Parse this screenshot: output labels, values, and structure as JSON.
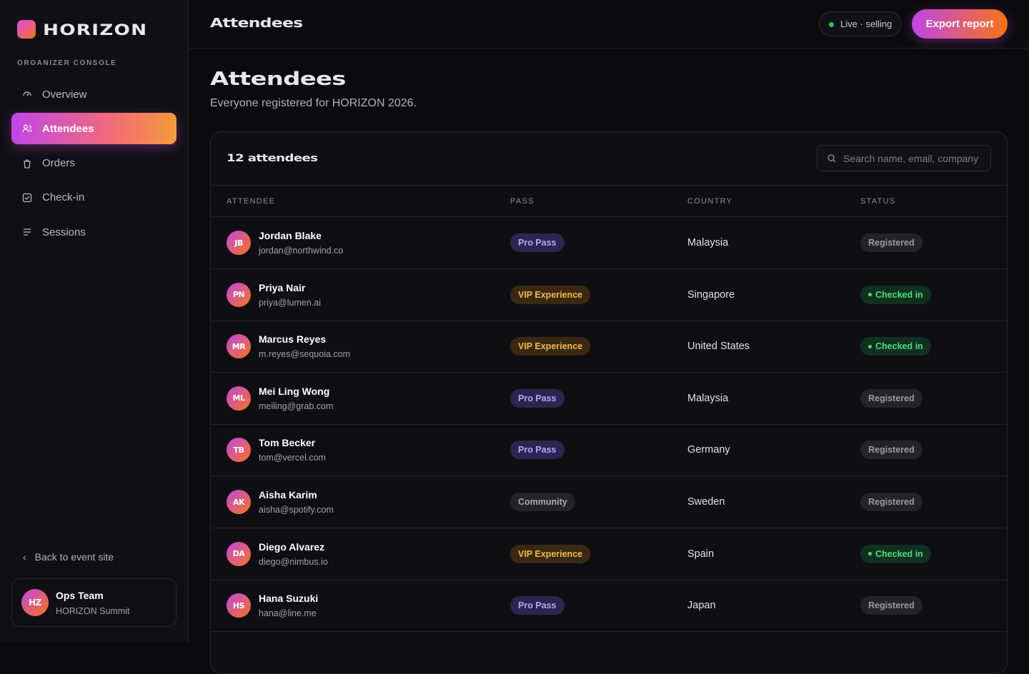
{
  "sidebar": {
    "brand": "HORIZON",
    "section": "ORGANIZER CONSOLE",
    "nav": [
      "Overview",
      "Attendees",
      "Orders",
      "Check-in",
      "Sessions"
    ],
    "back": "Back to event site",
    "user": {
      "initials": "HZ",
      "name": "Ops Team",
      "org": "HORIZON Summit"
    }
  },
  "topbar": {
    "title": "Attendees",
    "status": "Live · selling",
    "button": "Export report"
  },
  "header": {
    "title": "Attendees",
    "subtitle": "Everyone registered for HORIZON 2026."
  },
  "table": {
    "count": "12 attendees",
    "search": "Search name, email, company",
    "columns": [
      "ATTENDEE",
      "PASS",
      "COUNTRY",
      "STATUS"
    ],
    "rows": [
      [
        "JB",
        "Jordan Blake",
        "jordan@northwind.co",
        "Pro Pass",
        "Malaysia",
        "Registered"
      ],
      [
        "PN",
        "Priya Nair",
        "priya@lumen.ai",
        "VIP Experience",
        "Singapore",
        "Checked in"
      ],
      [
        "MR",
        "Marcus Reyes",
        "m.reyes@sequoia.com",
        "VIP Experience",
        "United States",
        "Checked in"
      ],
      [
        "ML",
        "Mei Ling Wong",
        "meiling@grab.com",
        "Pro Pass",
        "Malaysia",
        "Registered"
      ],
      [
        "TB",
        "Tom Becker",
        "tom@vercel.com",
        "Pro Pass",
        "Germany",
        "Registered"
      ],
      [
        "AK",
        "Aisha Karim",
        "aisha@spotify.com",
        "Community",
        "Sweden",
        "Registered"
      ],
      [
        "DA",
        "Diego Alvarez",
        "diego@nimbus.io",
        "VIP Experience",
        "Spain",
        "Checked in"
      ],
      [
        "HS",
        "Hana Suzuki",
        "hana@line.me",
        "Pro Pass",
        "Japan",
        "Registered"
      ]
    ]
  }
}
